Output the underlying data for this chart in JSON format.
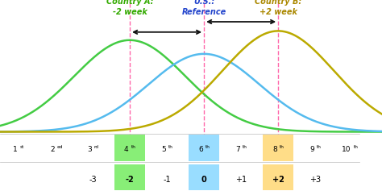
{
  "title_A": "Country A:",
  "subtitle_A": "-2 week",
  "title_US": "U.S.:",
  "subtitle_US": "Reference",
  "title_B": "Country B:",
  "subtitle_B": "+2 week",
  "color_A": "#44cc44",
  "color_US": "#55bbee",
  "color_B": "#bbaa00",
  "color_A_text": "#33aa00",
  "color_US_text": "#2244cc",
  "color_B_text": "#aa8800",
  "dashed_color": "#ff66aa",
  "arrow_color": "#111111",
  "mu_A": 4,
  "mu_US": 6,
  "mu_B": 8,
  "sigma": 1.5,
  "amp_A": 0.8,
  "amp_US": 0.68,
  "amp_B": 0.88,
  "x_min": 0.5,
  "x_max": 10.8,
  "week_labels": [
    "1st",
    "2ed",
    "3rd",
    "4th",
    "5th",
    "6th",
    "7th",
    "8th",
    "9th",
    "10th"
  ],
  "week_positions": [
    1,
    2,
    3,
    4,
    5,
    6,
    7,
    8,
    9,
    10
  ],
  "highlighted_weeks": [
    4,
    6,
    8
  ],
  "highlight_colors_week": [
    "#88ee77",
    "#99ddff",
    "#ffdd88"
  ],
  "timelag_labels": [
    "-3",
    "-2",
    "-1",
    "0",
    "+1",
    "+2",
    "+3"
  ],
  "timelag_positions": [
    3,
    4,
    5,
    6,
    7,
    8,
    9
  ],
  "highlighted_timelags": [
    4,
    6,
    8
  ],
  "highlight_colors_tl": [
    "#88ee77",
    "#99ddff",
    "#ffdd88"
  ],
  "bg_color": "#ffffff",
  "sup_map": {
    "1st": "st",
    "2ed": "ed",
    "3rd": "rd",
    "4th": "th",
    "5th": "th",
    "6th": "th",
    "7th": "th",
    "8th": "th",
    "9th": "th",
    "10th": "th"
  }
}
